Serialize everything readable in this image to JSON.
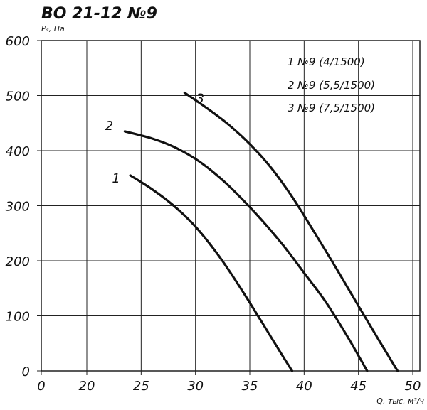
{
  "chart_data": {
    "type": "line",
    "title": "ВО 21-12 №9",
    "ylabel": "Pₛ, Па",
    "xlabel": "Q, тыс. м³/ч",
    "xlim": [
      0,
      50
    ],
    "ylim": [
      0,
      600
    ],
    "x_ticks": [
      0,
      20,
      25,
      30,
      35,
      40,
      45,
      50
    ],
    "y_ticks": [
      0,
      100,
      200,
      300,
      400,
      500,
      600
    ],
    "x_tick_labels": [
      "0",
      "20",
      "25",
      "30",
      "35",
      "40",
      "45",
      "50"
    ],
    "y_tick_labels": [
      "0",
      "100",
      "200",
      "300",
      "400",
      "500",
      "600"
    ],
    "x_axis_break": true,
    "grid": true,
    "legend_position": "top-right",
    "legend": [
      "1 №9 (4/1500)",
      "2 №9 (5,5/1500)",
      "3 №9 (7,5/1500)"
    ],
    "series": [
      {
        "name": "1",
        "points": [
          [
            24.0,
            355
          ],
          [
            26.0,
            330
          ],
          [
            28.0,
            300
          ],
          [
            30.0,
            262
          ],
          [
            32.0,
            213
          ],
          [
            34.0,
            155
          ],
          [
            36.0,
            92
          ],
          [
            38.0,
            28
          ],
          [
            38.9,
            0
          ]
        ]
      },
      {
        "name": "2",
        "points": [
          [
            23.5,
            435
          ],
          [
            26.0,
            422
          ],
          [
            28.0,
            407
          ],
          [
            30.0,
            385
          ],
          [
            32.0,
            355
          ],
          [
            34.0,
            318
          ],
          [
            36.0,
            276
          ],
          [
            38.0,
            230
          ],
          [
            40.0,
            178
          ],
          [
            42.0,
            125
          ],
          [
            44.0,
            62
          ],
          [
            45.8,
            0
          ]
        ]
      },
      {
        "name": "3",
        "points": [
          [
            29.0,
            505
          ],
          [
            31.0,
            478
          ],
          [
            33.0,
            448
          ],
          [
            35.0,
            412
          ],
          [
            37.0,
            368
          ],
          [
            39.0,
            313
          ],
          [
            41.0,
            250
          ],
          [
            43.0,
            185
          ],
          [
            45.0,
            118
          ],
          [
            47.0,
            52
          ],
          [
            48.6,
            0
          ]
        ]
      }
    ]
  }
}
